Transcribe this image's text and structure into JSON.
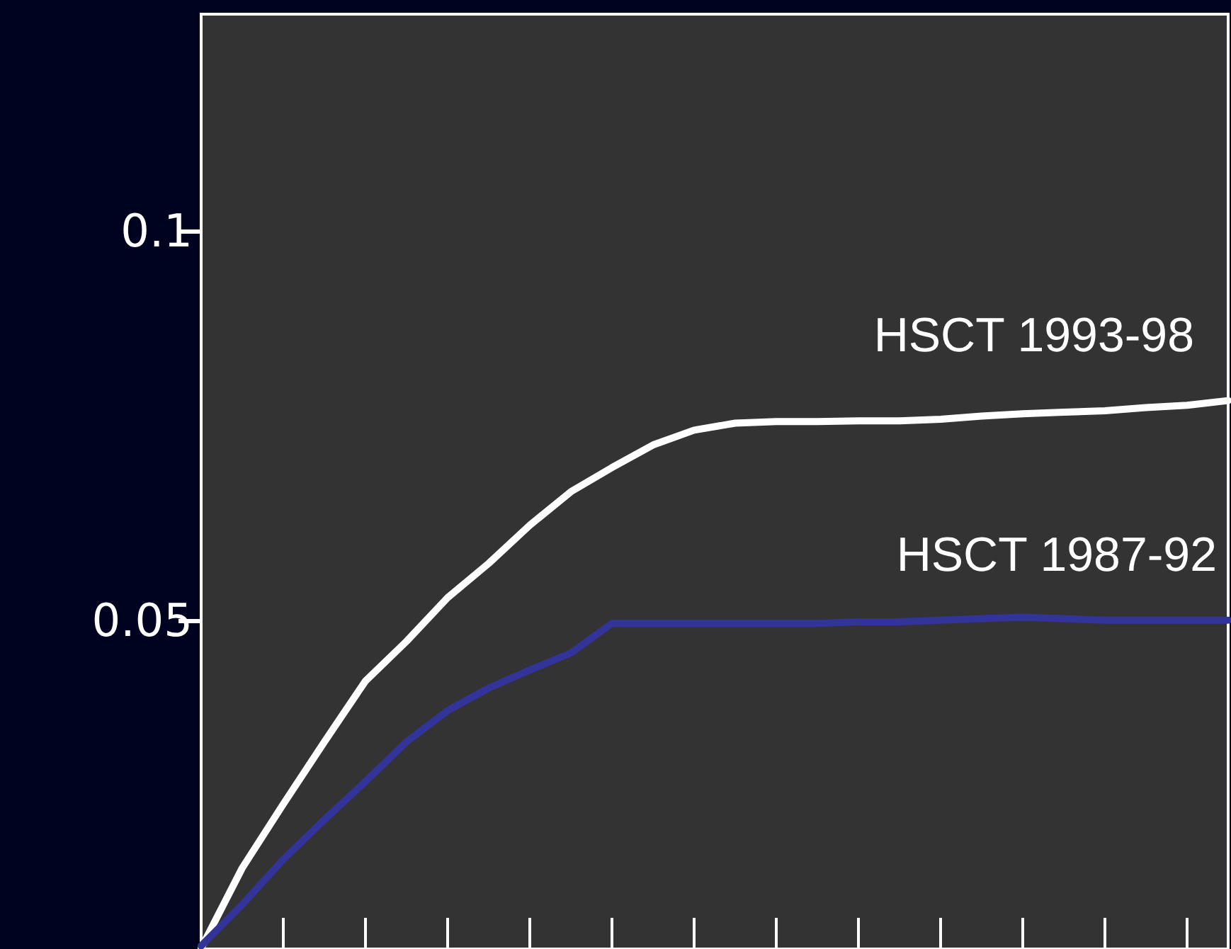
{
  "chart_data": {
    "type": "line",
    "ylim": [
      0.0078,
      0.1278
    ],
    "yticks": [
      0.05,
      0.1
    ],
    "tick_labels": "y",
    "marker": "none",
    "line_style": "solid",
    "categories": [
      null,
      null,
      null,
      null,
      null,
      null,
      null,
      null,
      null,
      null,
      null,
      null,
      null,
      null,
      null,
      null,
      null,
      null,
      null,
      null,
      null,
      null,
      null,
      null,
      null,
      null
    ],
    "series": [
      {
        "name": "HSCT 1993-98",
        "color": "#ffffff",
        "values": [
          0.0079,
          0.0182,
          0.0264,
          0.0344,
          0.0422,
          0.0473,
          0.0529,
          0.0573,
          0.0622,
          0.0665,
          0.0696,
          0.0725,
          0.0744,
          0.0753,
          0.0755,
          0.0755,
          0.0756,
          0.0756,
          0.0758,
          0.0762,
          0.0765,
          0.0767,
          0.0769,
          0.0773,
          0.0776,
          0.0782
        ]
      },
      {
        "name": "HSCT 1987-92",
        "color": "#33349a",
        "values": [
          0.0082,
          0.0135,
          0.0193,
          0.0244,
          0.0293,
          0.0344,
          0.0384,
          0.0413,
          0.0436,
          0.0458,
          0.0496,
          0.0496,
          0.0496,
          0.0496,
          0.0496,
          0.0496,
          0.0498,
          0.0498,
          0.05,
          0.0502,
          0.0504,
          0.0502,
          0.05,
          0.05,
          0.05,
          0.05
        ]
      }
    ]
  }
}
